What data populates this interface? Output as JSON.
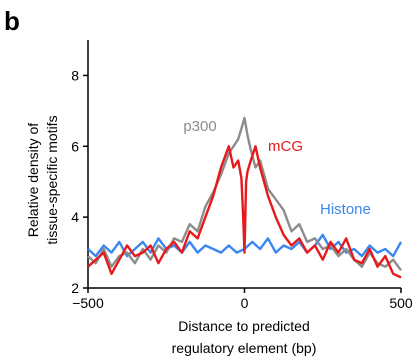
{
  "panel_label": "b",
  "chart_data": {
    "type": "line",
    "title": "",
    "xlabel_line1": "Distance to predicted",
    "xlabel_line2": "regulatory element (bp)",
    "ylabel_line1": "Relative density of",
    "ylabel_line2": "tissue-specific motifs",
    "xlim": [
      -500,
      500
    ],
    "ylim": [
      2,
      9
    ],
    "xticks": [
      -500,
      0,
      500
    ],
    "xtick_labels": [
      "−500",
      "0",
      "500"
    ],
    "yticks": [
      2,
      4,
      6,
      8
    ],
    "ytick_labels": [
      "2",
      "4",
      "6",
      "8"
    ],
    "grid": false,
    "legend": "inline labels",
    "series": [
      {
        "name": "p300",
        "color": "#8c8c8c",
        "x": [
          -500,
          -475,
          -450,
          -425,
          -400,
          -375,
          -350,
          -325,
          -300,
          -275,
          -250,
          -225,
          -200,
          -175,
          -150,
          -125,
          -100,
          -75,
          -50,
          -35,
          -20,
          -10,
          0,
          10,
          20,
          35,
          50,
          75,
          100,
          125,
          150,
          175,
          200,
          225,
          250,
          275,
          300,
          325,
          350,
          375,
          400,
          425,
          450,
          475,
          500
        ],
        "y": [
          2.9,
          2.7,
          3.1,
          2.6,
          2.9,
          3.0,
          2.7,
          3.1,
          2.8,
          3.2,
          3.0,
          3.4,
          3.3,
          3.8,
          3.6,
          4.3,
          4.7,
          5.2,
          5.8,
          6.0,
          6.2,
          6.5,
          6.8,
          6.3,
          5.9,
          5.4,
          5.6,
          4.8,
          4.5,
          4.2,
          3.6,
          3.8,
          3.3,
          3.4,
          3.1,
          3.2,
          2.9,
          3.1,
          2.8,
          2.6,
          3.0,
          2.7,
          2.6,
          2.8,
          2.5
        ]
      },
      {
        "name": "mCG",
        "color": "#e8191b",
        "x": [
          -500,
          -475,
          -450,
          -425,
          -400,
          -375,
          -350,
          -325,
          -300,
          -275,
          -250,
          -225,
          -200,
          -175,
          -150,
          -125,
          -100,
          -75,
          -50,
          -35,
          -20,
          -10,
          -5,
          0,
          5,
          10,
          20,
          35,
          50,
          75,
          100,
          125,
          150,
          175,
          200,
          225,
          250,
          275,
          300,
          325,
          350,
          375,
          400,
          425,
          450,
          475,
          500
        ],
        "y": [
          2.6,
          2.8,
          3.0,
          2.4,
          2.8,
          3.2,
          2.9,
          3.0,
          3.2,
          2.7,
          3.1,
          3.3,
          3.0,
          3.6,
          3.4,
          4.0,
          4.6,
          5.4,
          6.0,
          5.4,
          5.6,
          5.1,
          4.2,
          3.0,
          5.0,
          5.3,
          5.6,
          6.0,
          5.4,
          4.6,
          4.0,
          3.5,
          3.2,
          3.4,
          3.0,
          3.2,
          2.8,
          3.3,
          3.0,
          3.4,
          2.8,
          2.7,
          3.1,
          2.6,
          2.9,
          2.4,
          2.3
        ]
      },
      {
        "name": "Histone",
        "color": "#3a87f0",
        "x": [
          -500,
          -475,
          -450,
          -425,
          -400,
          -375,
          -350,
          -325,
          -300,
          -275,
          -250,
          -225,
          -200,
          -175,
          -150,
          -125,
          -100,
          -75,
          -50,
          -25,
          0,
          25,
          50,
          75,
          100,
          125,
          150,
          175,
          200,
          225,
          250,
          275,
          300,
          325,
          350,
          375,
          400,
          425,
          450,
          475,
          500
        ],
        "y": [
          3.1,
          2.9,
          3.2,
          3.0,
          3.3,
          2.9,
          3.1,
          3.3,
          3.0,
          3.4,
          3.1,
          3.2,
          3.0,
          3.3,
          3.0,
          3.2,
          3.1,
          3.0,
          3.2,
          3.0,
          3.1,
          3.3,
          3.1,
          3.4,
          3.0,
          3.2,
          3.1,
          3.3,
          3.0,
          3.2,
          3.5,
          3.1,
          3.3,
          3.0,
          3.1,
          2.9,
          3.2,
          3.0,
          3.1,
          2.9,
          3.3
        ]
      }
    ]
  }
}
